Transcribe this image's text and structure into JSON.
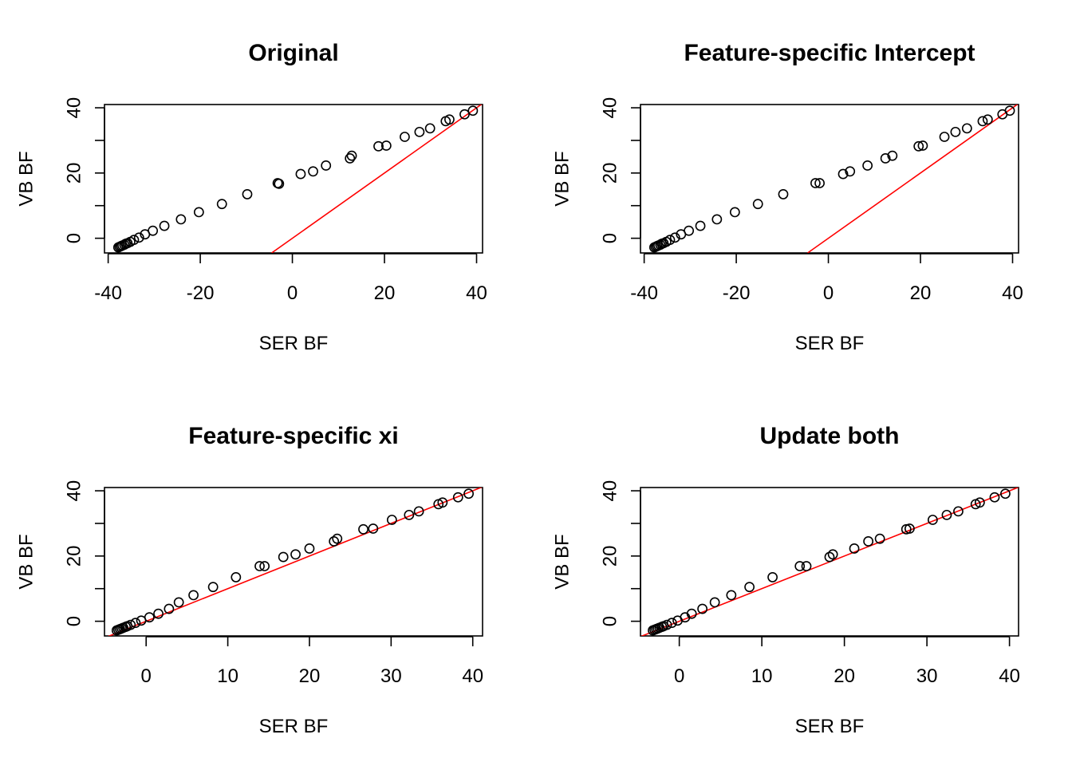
{
  "chart_data": [
    {
      "type": "scatter",
      "title": "Original",
      "xlabel": "SER BF",
      "ylabel": "VB BF",
      "xlim": [
        -40.8,
        41.3
      ],
      "ylim": [
        -4.5,
        41
      ],
      "xticks": [
        -40,
        -20,
        0,
        20,
        40
      ],
      "yticks": [
        0,
        10,
        20,
        30,
        40
      ],
      "yticklabels": [
        "0",
        "",
        "20",
        "",
        "40"
      ],
      "reference_line": {
        "color": "#ff0000",
        "points": [
          [
            -4.5,
            -4.5
          ],
          [
            41.3,
            41.3
          ]
        ]
      },
      "points": [
        [
          -37.8,
          -2.8
        ],
        [
          -37.5,
          -2.6
        ],
        [
          -37.2,
          -2.4
        ],
        [
          -36.9,
          -2.2
        ],
        [
          -36.5,
          -2.0
        ],
        [
          -36.2,
          -1.7
        ],
        [
          -35.8,
          -1.5
        ],
        [
          -35.2,
          -1.1
        ],
        [
          -34.4,
          -0.5
        ],
        [
          -33.3,
          0.2
        ],
        [
          -32.0,
          1.2
        ],
        [
          -30.3,
          2.3
        ],
        [
          -27.8,
          3.8
        ],
        [
          -24.2,
          5.8
        ],
        [
          -20.3,
          8.0
        ],
        [
          -15.3,
          10.5
        ],
        [
          -9.8,
          13.5
        ],
        [
          -3.2,
          16.9
        ],
        [
          -2.9,
          16.7
        ],
        [
          1.8,
          19.7
        ],
        [
          4.5,
          20.5
        ],
        [
          7.3,
          22.3
        ],
        [
          12.5,
          24.5
        ],
        [
          12.9,
          25.3
        ],
        [
          18.7,
          28.2
        ],
        [
          20.4,
          28.4
        ],
        [
          24.4,
          31.1
        ],
        [
          27.6,
          32.6
        ],
        [
          29.9,
          33.7
        ],
        [
          33.3,
          35.9
        ],
        [
          34.1,
          36.4
        ],
        [
          37.4,
          38.0
        ],
        [
          39.2,
          39.1
        ]
      ]
    },
    {
      "type": "scatter",
      "title": "Feature-specific Intercept",
      "xlabel": "SER BF",
      "ylabel": "VB BF",
      "xlim": [
        -40.8,
        41.3
      ],
      "ylim": [
        -4.5,
        41
      ],
      "xticks": [
        -40,
        -20,
        0,
        20,
        40
      ],
      "yticks": [
        0,
        10,
        20,
        30,
        40
      ],
      "yticklabels": [
        "0",
        "",
        "20",
        "",
        "40"
      ],
      "reference_line": {
        "color": "#ff0000",
        "points": [
          [
            -4.5,
            -4.5
          ],
          [
            41.3,
            41.3
          ]
        ]
      },
      "points": [
        [
          -37.8,
          -2.8
        ],
        [
          -37.5,
          -2.6
        ],
        [
          -37.2,
          -2.4
        ],
        [
          -36.9,
          -2.2
        ],
        [
          -36.5,
          -2.0
        ],
        [
          -36.2,
          -1.7
        ],
        [
          -35.8,
          -1.5
        ],
        [
          -35.2,
          -1.1
        ],
        [
          -34.4,
          -0.5
        ],
        [
          -33.3,
          0.2
        ],
        [
          -32.0,
          1.2
        ],
        [
          -30.3,
          2.3
        ],
        [
          -27.8,
          3.8
        ],
        [
          -24.2,
          5.8
        ],
        [
          -20.3,
          8.0
        ],
        [
          -15.3,
          10.5
        ],
        [
          -9.8,
          13.5
        ],
        [
          -2.8,
          16.9
        ],
        [
          -1.9,
          16.9
        ],
        [
          3.2,
          19.7
        ],
        [
          4.7,
          20.5
        ],
        [
          8.5,
          22.3
        ],
        [
          12.4,
          24.5
        ],
        [
          13.9,
          25.3
        ],
        [
          19.6,
          28.2
        ],
        [
          20.5,
          28.4
        ],
        [
          25.2,
          31.1
        ],
        [
          27.6,
          32.6
        ],
        [
          30.1,
          33.7
        ],
        [
          33.5,
          35.9
        ],
        [
          34.6,
          36.4
        ],
        [
          37.8,
          38.0
        ],
        [
          39.4,
          39.1
        ]
      ]
    },
    {
      "type": "scatter",
      "title": "Feature-specific xi",
      "xlabel": "SER BF",
      "ylabel": "VB BF",
      "xlim": [
        -5.1,
        41.2
      ],
      "ylim": [
        -4.5,
        41
      ],
      "xticks": [
        0,
        10,
        20,
        30,
        40
      ],
      "yticks": [
        0,
        10,
        20,
        30,
        40
      ],
      "yticklabels": [
        "0",
        "",
        "20",
        "",
        "40"
      ],
      "reference_line": {
        "color": "#ff0000",
        "points": [
          [
            -5.1,
            -5.1
          ],
          [
            41.2,
            41.2
          ]
        ]
      },
      "points": [
        [
          -3.6,
          -2.8
        ],
        [
          -3.4,
          -2.6
        ],
        [
          -3.2,
          -2.4
        ],
        [
          -3.0,
          -2.2
        ],
        [
          -2.8,
          -2.0
        ],
        [
          -2.5,
          -1.7
        ],
        [
          -2.3,
          -1.5
        ],
        [
          -1.9,
          -1.1
        ],
        [
          -1.3,
          -0.5
        ],
        [
          -0.6,
          0.2
        ],
        [
          0.4,
          1.2
        ],
        [
          1.5,
          2.3
        ],
        [
          2.8,
          3.8
        ],
        [
          4.0,
          5.8
        ],
        [
          5.8,
          8.0
        ],
        [
          8.2,
          10.5
        ],
        [
          11.0,
          13.5
        ],
        [
          13.9,
          16.9
        ],
        [
          14.5,
          16.9
        ],
        [
          16.8,
          19.7
        ],
        [
          18.3,
          20.5
        ],
        [
          20.0,
          22.3
        ],
        [
          23.0,
          24.5
        ],
        [
          23.4,
          25.3
        ],
        [
          26.6,
          28.2
        ],
        [
          27.8,
          28.4
        ],
        [
          30.1,
          31.1
        ],
        [
          32.2,
          32.6
        ],
        [
          33.4,
          33.7
        ],
        [
          35.8,
          35.9
        ],
        [
          36.3,
          36.4
        ],
        [
          38.2,
          38.0
        ],
        [
          39.5,
          39.1
        ]
      ]
    },
    {
      "type": "scatter",
      "title": "Update both",
      "xlabel": "SER BF",
      "ylabel": "VB BF",
      "xlim": [
        -4.7,
        41.1
      ],
      "ylim": [
        -4.5,
        41
      ],
      "xticks": [
        0,
        10,
        20,
        30,
        40
      ],
      "yticks": [
        0,
        10,
        20,
        30,
        40
      ],
      "yticklabels": [
        "0",
        "",
        "20",
        "",
        "40"
      ],
      "reference_line": {
        "color": "#ff0000",
        "points": [
          [
            -4.7,
            -4.7
          ],
          [
            41.1,
            41.1
          ]
        ]
      },
      "points": [
        [
          -3.2,
          -2.8
        ],
        [
          -3.0,
          -2.6
        ],
        [
          -2.8,
          -2.4
        ],
        [
          -2.6,
          -2.2
        ],
        [
          -2.4,
          -2.0
        ],
        [
          -2.1,
          -1.7
        ],
        [
          -1.9,
          -1.5
        ],
        [
          -1.5,
          -1.1
        ],
        [
          -0.9,
          -0.5
        ],
        [
          -0.2,
          0.2
        ],
        [
          0.7,
          1.2
        ],
        [
          1.5,
          2.3
        ],
        [
          2.8,
          3.8
        ],
        [
          4.3,
          5.8
        ],
        [
          6.3,
          8.0
        ],
        [
          8.5,
          10.5
        ],
        [
          11.3,
          13.5
        ],
        [
          14.6,
          16.9
        ],
        [
          15.4,
          16.9
        ],
        [
          18.2,
          19.7
        ],
        [
          18.6,
          20.5
        ],
        [
          21.2,
          22.3
        ],
        [
          22.9,
          24.5
        ],
        [
          24.3,
          25.3
        ],
        [
          27.5,
          28.2
        ],
        [
          27.9,
          28.4
        ],
        [
          30.7,
          31.1
        ],
        [
          32.4,
          32.6
        ],
        [
          33.8,
          33.7
        ],
        [
          35.9,
          35.9
        ],
        [
          36.4,
          36.4
        ],
        [
          38.2,
          38.0
        ],
        [
          39.5,
          39.1
        ]
      ]
    }
  ]
}
